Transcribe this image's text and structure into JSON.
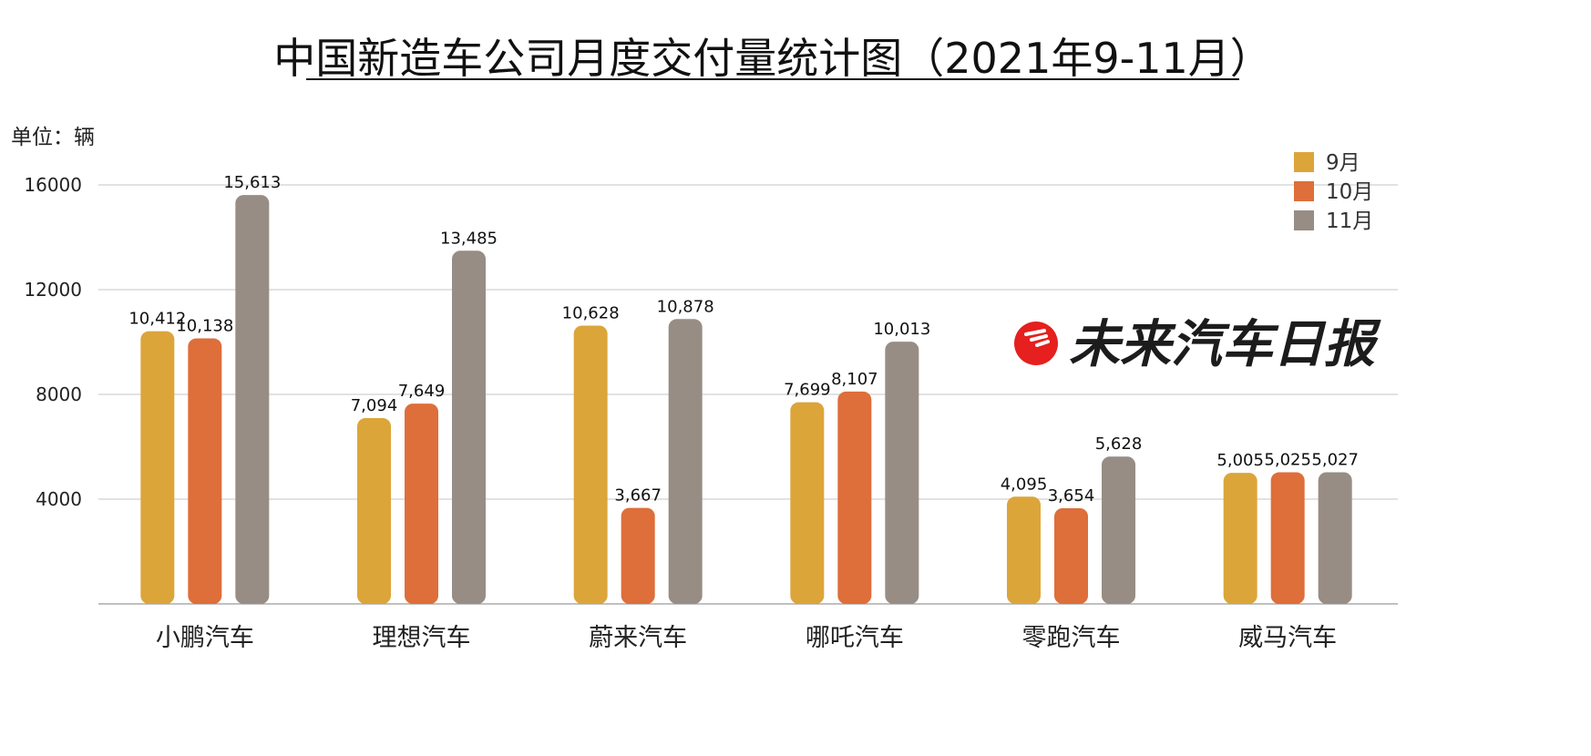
{
  "chart_data": {
    "type": "bar",
    "title": "中国新造车公司月度交付量统计图（2021年9-11月）",
    "unit_label": "单位：辆",
    "categories": [
      "小鹏汽车",
      "理想汽车",
      "蔚来汽车",
      "哪吒汽车",
      "零跑汽车",
      "威马汽车"
    ],
    "series": [
      {
        "name": "9月",
        "color": "#DCA53A",
        "values": [
          10412,
          7094,
          10628,
          7699,
          4095,
          5005
        ],
        "labels": [
          "10,412",
          "7,094",
          "10,628",
          "7,699",
          "4,095",
          "5,005"
        ]
      },
      {
        "name": "10月",
        "color": "#DE6E3A",
        "values": [
          10138,
          7649,
          3667,
          8107,
          3654,
          5025
        ],
        "labels": [
          "10,138",
          "7,649",
          "3,667",
          "8,107",
          "3,654",
          "5,025"
        ]
      },
      {
        "name": "11月",
        "color": "#978D84",
        "values": [
          15613,
          13485,
          10878,
          10013,
          5628,
          5027
        ],
        "labels": [
          "15,613",
          "13,485",
          "10,878",
          "10,013",
          "5,628",
          "5,027"
        ]
      }
    ],
    "y_ticks": [
      "4000",
      "8000",
      "12000",
      "16000"
    ],
    "ylim": [
      0,
      16000
    ],
    "grid": true,
    "legend_position": "top-right"
  },
  "watermark": {
    "text": "未来汽车日报",
    "logo_color": "#E5201E"
  }
}
